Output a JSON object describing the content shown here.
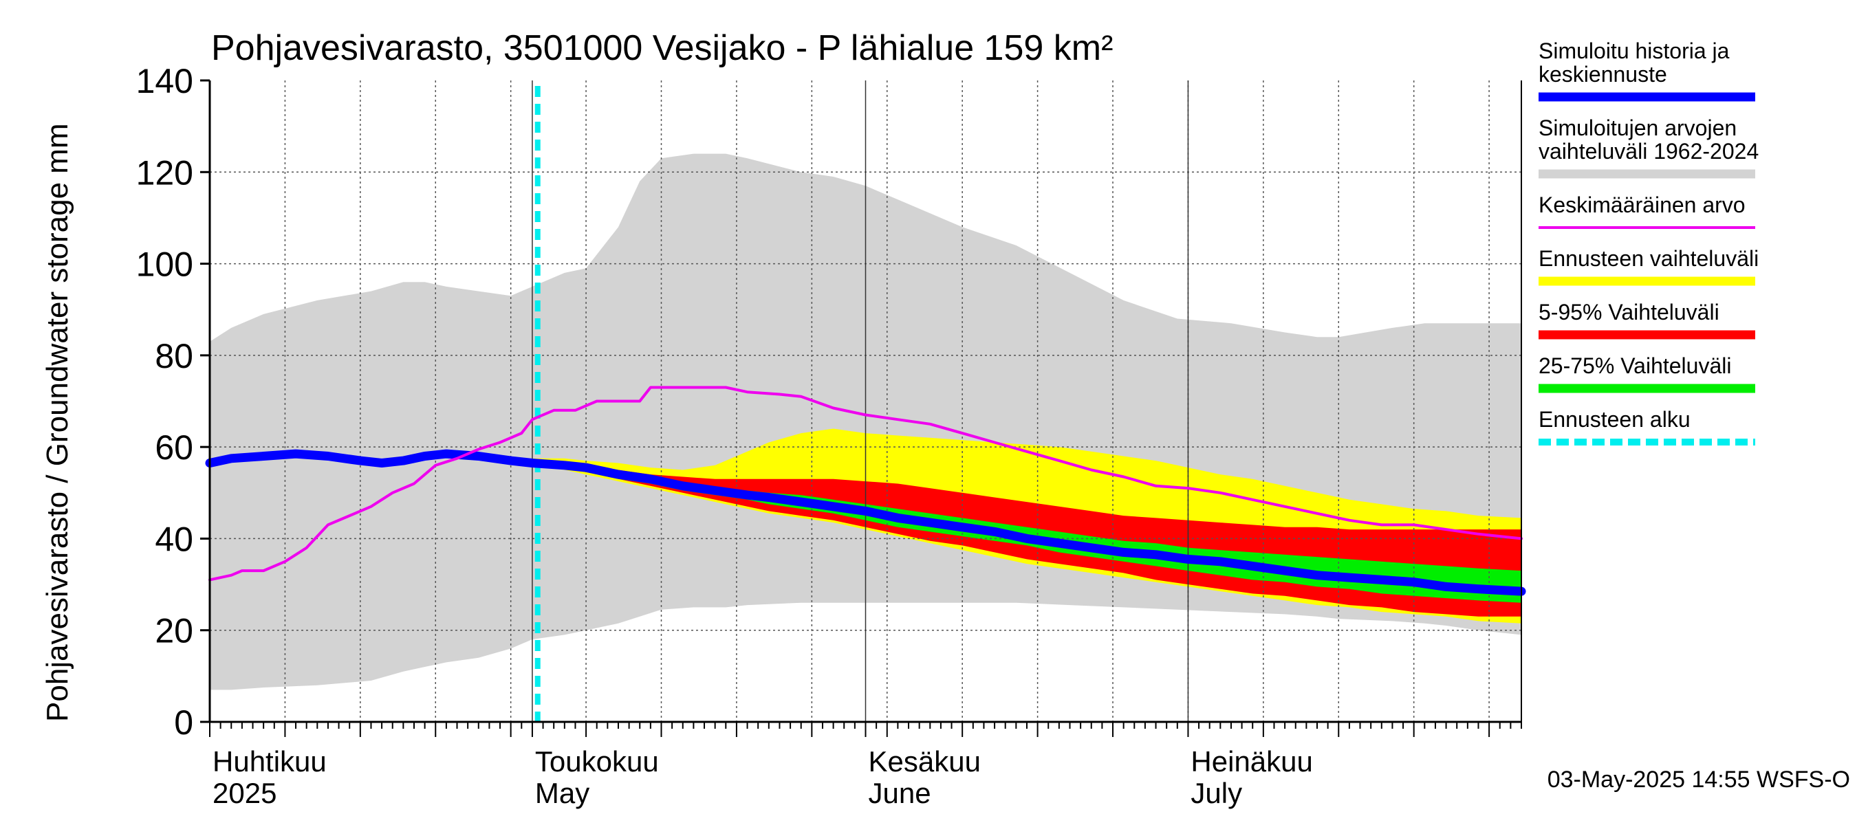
{
  "chart_data": {
    "type": "area",
    "title": "Pohjavesivarasto, 3501000 Vesijako - P lähialue 159 km²",
    "ylabel": "Pohjavesivarasto / Groundwater storage   mm",
    "ylim": [
      0,
      140
    ],
    "yticks": [
      0,
      20,
      40,
      60,
      80,
      100,
      120,
      140
    ],
    "x_range_days": [
      0,
      122
    ],
    "x_unit": "days since 2025-04-01",
    "month_labels": [
      {
        "line1": "Huhtikuu",
        "line2": "2025",
        "day": 0
      },
      {
        "line1": "Toukokuu",
        "line2": "May",
        "day": 30
      },
      {
        "line1": "Kesäkuu",
        "line2": "June",
        "day": 61
      },
      {
        "line1": "Heinäkuu",
        "line2": "July",
        "day": 91
      }
    ],
    "forecast_start_day": 30.5,
    "footer": "03-May-2025 14:55 WSFS-O",
    "series": [
      {
        "name": "Simuloitujen arvojen vaihteluväli 1962-2024",
        "kind": "band",
        "color": "#d3d3d3",
        "x": [
          0,
          2,
          5,
          10,
          15,
          18,
          20,
          22,
          25,
          28,
          30,
          33,
          35,
          38,
          40,
          42,
          45,
          48,
          50,
          55,
          58,
          61,
          65,
          70,
          75,
          80,
          85,
          90,
          95,
          100,
          103,
          105,
          110,
          113,
          115,
          118,
          122
        ],
        "upper": [
          83,
          86,
          89,
          92,
          94,
          96,
          96,
          95,
          94,
          93,
          95,
          98,
          99,
          108,
          118,
          123,
          124,
          124,
          123,
          120,
          119,
          117,
          113,
          108,
          104,
          98,
          92,
          88,
          87,
          85,
          84,
          84,
          86,
          87,
          87,
          87,
          87
        ],
        "lower": [
          7,
          7,
          7.5,
          8,
          9,
          11,
          12,
          13,
          14,
          16,
          18,
          19,
          20,
          21.5,
          23,
          24.5,
          25,
          25,
          25.5,
          26,
          26,
          26,
          26,
          26,
          26,
          25.5,
          25,
          24.5,
          24,
          23.5,
          23,
          22.5,
          22,
          21.5,
          21,
          20,
          19
        ]
      },
      {
        "name": "Ennusteen vaihteluväli",
        "kind": "band",
        "color": "#ffff00",
        "x": [
          30,
          33,
          35,
          38,
          41,
          44,
          47,
          50,
          52,
          55,
          58,
          61,
          64,
          67,
          70,
          73,
          76,
          79,
          82,
          85,
          88,
          91,
          94,
          97,
          100,
          103,
          106,
          109,
          112,
          115,
          118,
          122
        ],
        "upper": [
          57.5,
          57.5,
          57,
          56.5,
          55.5,
          55,
          56,
          59,
          61,
          63,
          64,
          63,
          62.5,
          62,
          61.5,
          61,
          60.5,
          60,
          59,
          58,
          57,
          55.5,
          54,
          53,
          51.5,
          50,
          48.5,
          47.5,
          46.5,
          46,
          45,
          44.5
        ],
        "lower": [
          56,
          55,
          54,
          52.5,
          51,
          49.5,
          48,
          46.5,
          45.5,
          44.5,
          43.5,
          42,
          40.5,
          39,
          37.5,
          36,
          34.5,
          33.5,
          32.5,
          31.5,
          30.5,
          29.5,
          28.5,
          27.5,
          26.5,
          25.5,
          25,
          24,
          23.5,
          23,
          22,
          21.5
        ]
      },
      {
        "name": "5-95% Vaihteluväli",
        "kind": "band",
        "color": "#ff0000",
        "x": [
          30,
          33,
          35,
          38,
          41,
          44,
          47,
          50,
          52,
          55,
          58,
          61,
          64,
          67,
          70,
          73,
          76,
          79,
          82,
          85,
          88,
          91,
          94,
          97,
          100,
          103,
          106,
          109,
          112,
          115,
          118,
          122
        ],
        "upper": [
          57,
          56.5,
          56,
          55,
          54,
          53.5,
          53,
          53,
          53,
          53,
          53,
          52.5,
          52,
          51,
          50,
          49,
          48,
          47,
          46,
          45,
          44.5,
          44,
          43.5,
          43,
          42.5,
          42.5,
          42,
          42,
          42,
          42,
          42,
          42
        ],
        "lower": [
          56.5,
          55.5,
          54.5,
          53,
          51.5,
          50,
          48.5,
          47,
          46,
          45,
          44,
          42.5,
          41,
          39.5,
          38.5,
          37,
          35.5,
          34.5,
          33.5,
          32.5,
          31,
          30,
          29,
          28,
          27.5,
          26.5,
          25.5,
          25,
          24,
          23.5,
          23,
          23
        ]
      },
      {
        "name": "25-75% Vaihteluväli",
        "kind": "band",
        "color": "#00ee00",
        "x": [
          30,
          33,
          35,
          38,
          41,
          44,
          47,
          50,
          52,
          55,
          58,
          61,
          64,
          67,
          70,
          73,
          76,
          79,
          82,
          85,
          88,
          91,
          94,
          97,
          100,
          103,
          106,
          109,
          112,
          115,
          118,
          122
        ],
        "upper": [
          56.5,
          56,
          55.5,
          54,
          53,
          52,
          51,
          50.5,
          50,
          49.5,
          48.5,
          47.5,
          46.5,
          45.5,
          44.5,
          43.5,
          42.5,
          41.5,
          40.5,
          39.5,
          39,
          38,
          37.5,
          37,
          36.5,
          36,
          35.5,
          35,
          34.5,
          34,
          33.5,
          33
        ],
        "lower": [
          56.5,
          55.5,
          54.5,
          53,
          52,
          50.5,
          49.5,
          48.5,
          47.5,
          46.5,
          45.5,
          44,
          42.5,
          41.5,
          40.5,
          39.5,
          38.5,
          37,
          36,
          35,
          34,
          33,
          32,
          31,
          30.5,
          29.5,
          29,
          28,
          27.5,
          27,
          26.5,
          26
        ]
      },
      {
        "name": "Simuloitu historia ja keskiennuste",
        "kind": "line",
        "color": "#0000ff",
        "x": [
          0,
          2,
          5,
          8,
          11,
          14,
          16,
          18,
          20,
          22,
          25,
          28,
          30,
          33,
          35,
          38,
          41,
          44,
          47,
          50,
          52,
          55,
          58,
          61,
          64,
          67,
          70,
          73,
          76,
          79,
          82,
          85,
          88,
          91,
          94,
          97,
          100,
          103,
          106,
          109,
          112,
          115,
          118,
          122
        ],
        "y": [
          56.5,
          57.5,
          58,
          58.5,
          58,
          57,
          56.5,
          57,
          58,
          58.5,
          58,
          57,
          56.5,
          56,
          55.5,
          54,
          53,
          51.5,
          50.5,
          49.5,
          49,
          48,
          47,
          46,
          44.5,
          43.5,
          42.5,
          41.5,
          40,
          39,
          38,
          37,
          36.5,
          35.5,
          35,
          34,
          33,
          32,
          31.5,
          31,
          30.5,
          29.5,
          29,
          28.5
        ]
      },
      {
        "name": "Keskimääräinen arvo",
        "kind": "line",
        "color": "#ee00ee",
        "x": [
          0,
          2,
          3,
          5,
          7,
          9,
          11,
          13,
          15,
          17,
          19,
          21,
          23,
          25,
          27,
          29,
          30,
          32,
          34,
          36,
          38,
          40,
          41,
          42,
          45,
          48,
          50,
          53,
          55,
          58,
          61,
          64,
          67,
          70,
          73,
          76,
          79,
          82,
          85,
          88,
          91,
          94,
          97,
          100,
          103,
          106,
          109,
          112,
          115,
          118,
          122
        ],
        "y": [
          31,
          32,
          33,
          33,
          35,
          38,
          43,
          45,
          47,
          50,
          52,
          56,
          57.5,
          59.5,
          61,
          63,
          66,
          68,
          68,
          70,
          70,
          70,
          73,
          73,
          73,
          73,
          72,
          71.5,
          71,
          68.5,
          67,
          66,
          65,
          63,
          61,
          59,
          57,
          55,
          53.5,
          51.5,
          51,
          50,
          48.5,
          47,
          45.5,
          44,
          43,
          43,
          42,
          41,
          40
        ]
      }
    ]
  },
  "legend": [
    {
      "name": "Simuloitu historia ja",
      "name2": "keskiennuste",
      "color": "#0000ff",
      "style": "thick"
    },
    {
      "name": "Simuloitujen arvojen",
      "name2": "vaihteluväli 1962-2024",
      "color": "#d3d3d3",
      "style": "thick"
    },
    {
      "name": "Keskimääräinen arvo",
      "name2": "",
      "color": "#ee00ee",
      "style": "thin"
    },
    {
      "name": "Ennusteen vaihteluväli",
      "name2": "",
      "color": "#ffff00",
      "style": "thick"
    },
    {
      "name": "5-95% Vaihteluväli",
      "name2": "",
      "color": "#ff0000",
      "style": "thick"
    },
    {
      "name": "25-75% Vaihteluväli",
      "name2": "",
      "color": "#00ee00",
      "style": "thick"
    },
    {
      "name": "Ennusteen alku",
      "name2": "",
      "color": "#00eeee",
      "style": "dashed"
    }
  ]
}
